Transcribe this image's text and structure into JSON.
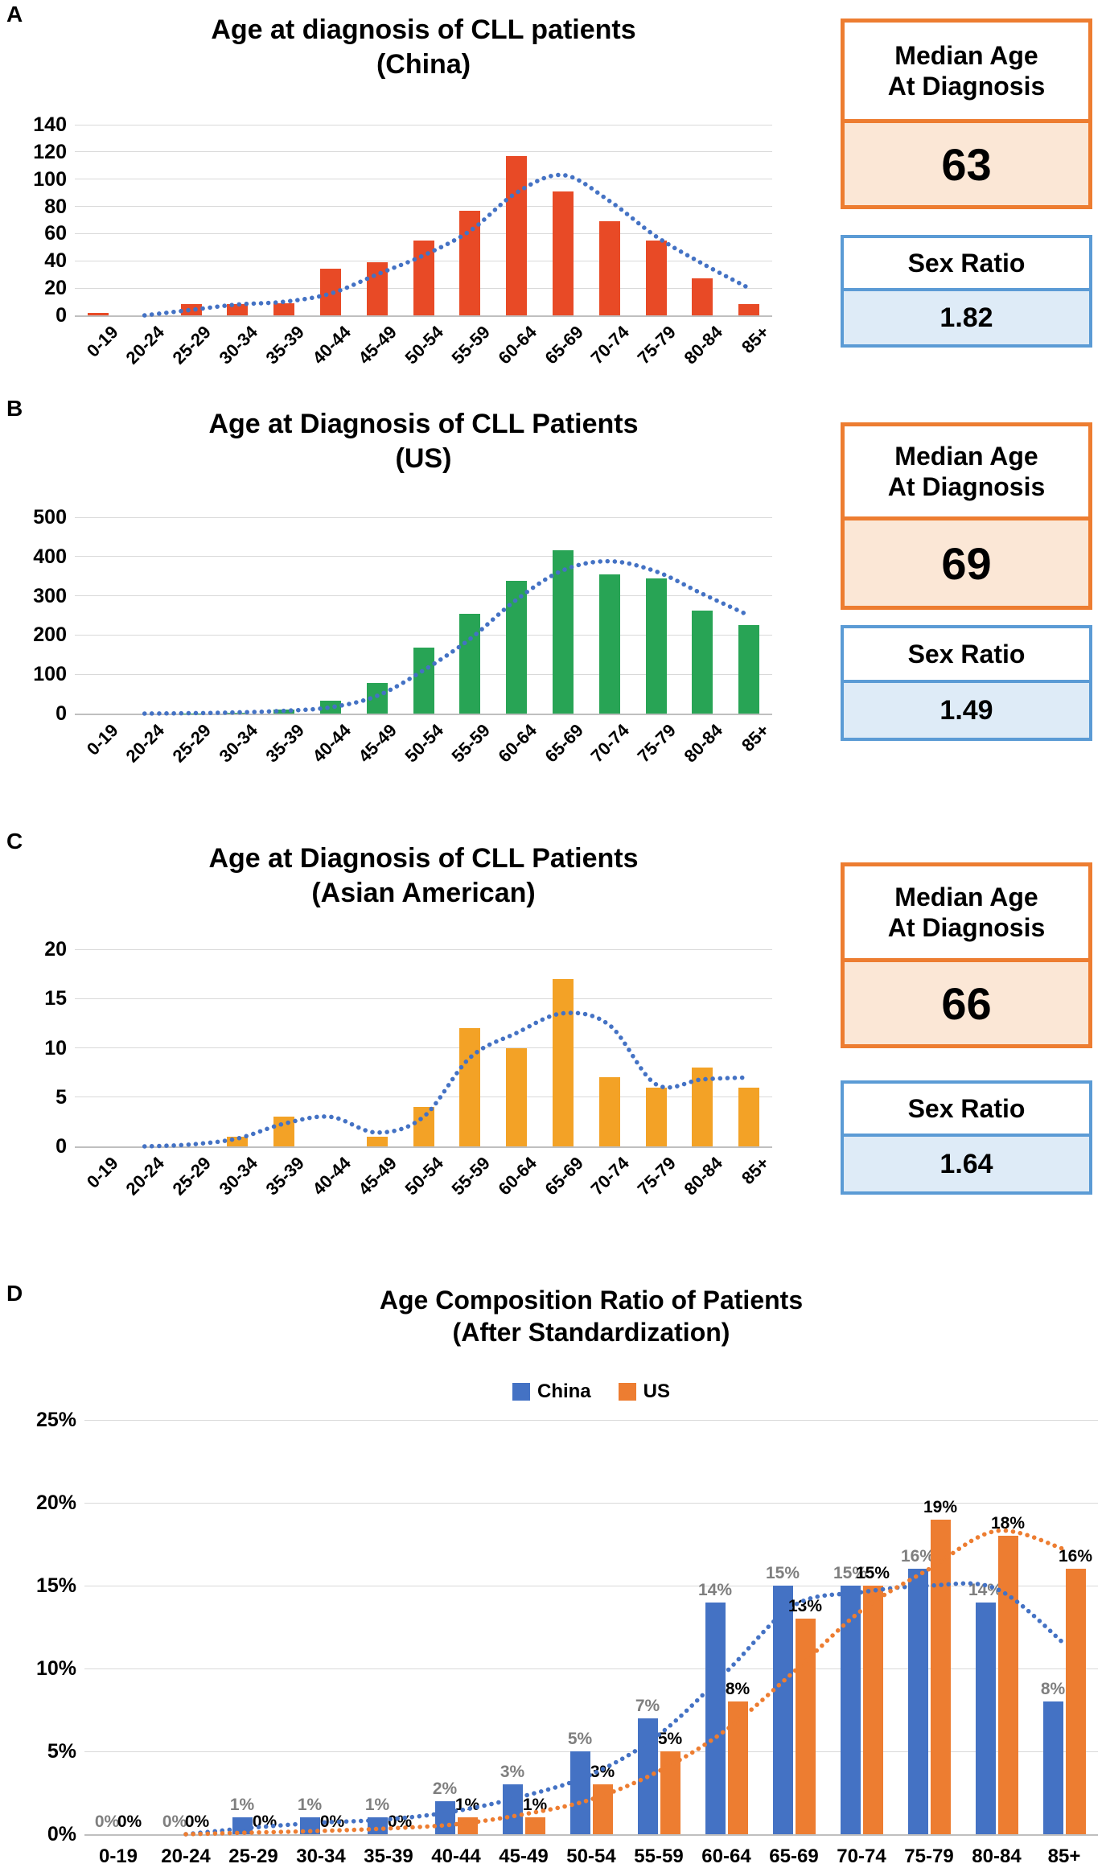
{
  "colors": {
    "accent_orange": "#ED7D31",
    "accent_orange_fill": "#FBE7D6",
    "accent_blue": "#5B9BD5",
    "accent_blue_fill": "#DEEBF7",
    "gridline": "#D9D9D9",
    "china_label_gray": "#7F7F7F"
  },
  "chart_data": [
    {
      "panel_label": "A",
      "type": "bar",
      "title": "Age at diagnosis of CLL patients",
      "subtitle": "(China)",
      "categories": [
        "0-19",
        "20-24",
        "25-29",
        "30-34",
        "35-39",
        "40-44",
        "45-49",
        "50-54",
        "55-59",
        "60-64",
        "65-69",
        "70-74",
        "75-79",
        "80-84",
        "85+"
      ],
      "values": [
        2,
        0,
        8,
        8,
        9,
        34,
        39,
        55,
        77,
        117,
        91,
        69,
        55,
        27,
        8
      ],
      "trend": [
        null,
        0,
        4,
        8,
        10,
        16,
        30,
        44,
        62,
        90,
        103,
        84,
        58,
        38,
        20
      ],
      "y_ticks": [
        0,
        20,
        40,
        60,
        80,
        100,
        120,
        140
      ],
      "y_tick_labels": [
        "0",
        "20",
        "40",
        "60",
        "80",
        "100",
        "120",
        "140"
      ],
      "ylim": [
        0,
        140
      ],
      "bar_color": "#E84A26",
      "trend_color": "#4472C4",
      "grid": true,
      "legend_position": "none",
      "stats": {
        "median_title": "Median Age\nAt Diagnosis",
        "median_value": "63",
        "sex_title": "Sex Ratio",
        "sex_value": "1.82"
      }
    },
    {
      "panel_label": "B",
      "type": "bar",
      "title": "Age at Diagnosis of CLL Patients",
      "subtitle": "(US)",
      "categories": [
        "0-19",
        "20-24",
        "25-29",
        "30-34",
        "35-39",
        "40-44",
        "45-49",
        "50-54",
        "55-59",
        "60-64",
        "65-69",
        "70-74",
        "75-79",
        "80-84",
        "85+"
      ],
      "values": [
        0,
        0,
        1,
        2,
        10,
        32,
        78,
        168,
        255,
        338,
        415,
        355,
        345,
        262,
        225
      ],
      "trend": [
        null,
        0,
        1,
        3,
        7,
        16,
        45,
        110,
        190,
        290,
        365,
        388,
        362,
        305,
        250
      ],
      "y_ticks": [
        0,
        100,
        200,
        300,
        400,
        500
      ],
      "y_tick_labels": [
        "0",
        "100",
        "200",
        "300",
        "400",
        "500"
      ],
      "ylim": [
        0,
        500
      ],
      "bar_color": "#28A455",
      "trend_color": "#4472C4",
      "grid": true,
      "legend_position": "none",
      "stats": {
        "median_title": "Median Age\nAt Diagnosis",
        "median_value": "69",
        "sex_title": "Sex Ratio",
        "sex_value": "1.49"
      }
    },
    {
      "panel_label": "C",
      "type": "bar",
      "title": "Age at Diagnosis of CLL Patients",
      "subtitle": "(Asian American)",
      "categories": [
        "0-19",
        "20-24",
        "25-29",
        "30-34",
        "35-39",
        "40-44",
        "45-49",
        "50-54",
        "55-59",
        "60-64",
        "65-69",
        "70-74",
        "75-79",
        "80-84",
        "85+"
      ],
      "values": [
        0,
        0,
        0,
        1,
        3,
        0,
        1,
        4,
        12,
        10,
        17,
        7,
        6,
        8,
        6
      ],
      "trend": [
        null,
        0,
        0.2,
        0.8,
        2.3,
        3,
        1.4,
        3,
        9,
        11.5,
        13.5,
        12.3,
        6.3,
        6.8,
        7
      ],
      "y_ticks": [
        0,
        5,
        10,
        15,
        20
      ],
      "y_tick_labels": [
        "0",
        "5",
        "10",
        "15",
        "20"
      ],
      "ylim": [
        0,
        20
      ],
      "bar_color": "#F3A226",
      "trend_color": "#4472C4",
      "grid": true,
      "legend_position": "none",
      "stats": {
        "median_title": "Median Age\nAt Diagnosis",
        "median_value": "66",
        "sex_title": "Sex Ratio",
        "sex_value": "1.64"
      }
    },
    {
      "panel_label": "D",
      "type": "grouped-bar",
      "title": "Age Composition Ratio of Patients",
      "subtitle": "(After Standardization)",
      "categories": [
        "0-19",
        "20-24",
        "25-29",
        "30-34",
        "35-39",
        "40-44",
        "45-49",
        "50-54",
        "55-59",
        "60-64",
        "65-69",
        "70-74",
        "75-79",
        "80-84",
        "85+"
      ],
      "series": [
        {
          "name": "China",
          "color": "#4472C4",
          "label_color": "#7F7F7F",
          "values": [
            0,
            0,
            1,
            1,
            1,
            2,
            3,
            5,
            7,
            14,
            15,
            15,
            16,
            14,
            8
          ],
          "labels": [
            "0%",
            "0%",
            "1%",
            "1%",
            "1%",
            "2%",
            "3%",
            "5%",
            "7%",
            "14%",
            "15%",
            "15%",
            "16%",
            "14%",
            "8%"
          ],
          "trend": [
            null,
            0,
            0.4,
            0.7,
            0.9,
            1.4,
            2.3,
            3.6,
            6,
            9.8,
            13.8,
            14.6,
            15,
            14.8,
            11.5
          ]
        },
        {
          "name": "US",
          "color": "#ED7D31",
          "label_color": "#000000",
          "values": [
            0,
            0,
            0,
            0,
            0,
            1,
            1,
            3,
            5,
            8,
            13,
            15,
            19,
            18,
            16
          ],
          "labels": [
            "0%",
            "0%",
            "0%",
            "0%",
            "0%",
            "1%",
            "1%",
            "3%",
            "5%",
            "8%",
            "13%",
            "15%",
            "19%",
            "18%",
            "16%"
          ],
          "trend": [
            null,
            0,
            0.1,
            0.2,
            0.35,
            0.6,
            1.2,
            2.1,
            3.8,
            6.3,
            9.8,
            13.5,
            16,
            18.3,
            17.2
          ]
        }
      ],
      "y_ticks": [
        0,
        5,
        10,
        15,
        20,
        25
      ],
      "y_tick_labels": [
        "0%",
        "5%",
        "10%",
        "15%",
        "20%",
        "25%"
      ],
      "ylim": [
        0,
        25
      ],
      "grid": true,
      "legend_position": "top"
    }
  ]
}
